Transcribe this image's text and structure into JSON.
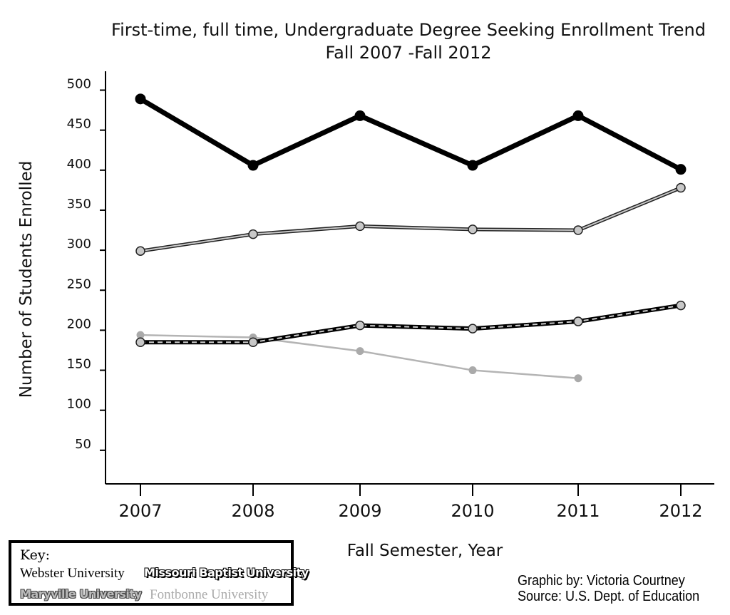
{
  "chart_data": {
    "type": "line",
    "title": "First-time, full time, Undergraduate Degree Seeking Enrollment Trend",
    "subtitle": "Fall 2007 -Fall 2012",
    "xlabel": "Fall Semester, Year",
    "ylabel": "Number of Students Enrolled",
    "categories": [
      "2007",
      "2008",
      "2009",
      "2010",
      "2011",
      "2012"
    ],
    "yticks": [
      50,
      100,
      150,
      200,
      250,
      300,
      350,
      400,
      450,
      500
    ],
    "ylim": [
      0,
      520
    ],
    "grid": false,
    "legend_position": "bottom-left",
    "series": [
      {
        "name": "Webster University",
        "values": [
          489,
          406,
          468,
          406,
          468,
          401
        ]
      },
      {
        "name": "Maryville University",
        "values": [
          299,
          320,
          330,
          326,
          325,
          378
        ]
      },
      {
        "name": "Missouri Baptist University",
        "values": [
          185,
          185,
          206,
          202,
          211,
          231
        ]
      },
      {
        "name": "Fontbonne University",
        "values": [
          194,
          191,
          174,
          150,
          140,
          null
        ]
      }
    ]
  },
  "key": {
    "title": "Key:",
    "webster": "Webster University",
    "mbu": "Missouri Baptist University",
    "maryville": "Maryville University",
    "fontbonne": "Fontbonne University"
  },
  "credits": {
    "line1": "Graphic by: Victoria Courtney",
    "line2": "Source: U.S. Dept. of Education"
  }
}
